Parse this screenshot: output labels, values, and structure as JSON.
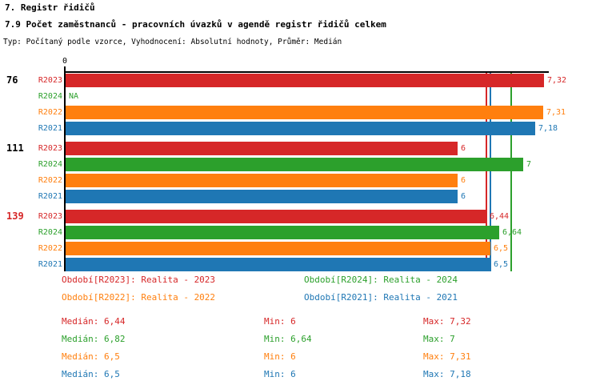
{
  "title1": "7. Registr řidičů",
  "title2": "7.9 Počet zaměstnanců - pracovních úvazků v agendě registr řidičů celkem",
  "subtitle": "Typ: Počítaný podle vzorce, Vyhodnocení: Absolutní hodnoty, Průměr: Medián",
  "colors": {
    "R2023": "#d62728",
    "R2024": "#2ca02c",
    "R2022": "#ff7f0e",
    "R2021": "#1f77b4",
    "axis": "#000000",
    "group_label_default": "#000000",
    "group_label_highlight": "#d62728"
  },
  "chart_data": {
    "type": "bar",
    "orientation": "horizontal",
    "title": "7.9 Počet zaměstnanců - pracovních úvazků v agendě registr řidičů celkem",
    "xlim": [
      0,
      7.4
    ],
    "grid": false,
    "legend_position": "bottom",
    "x_axis": {
      "origin_label": "0"
    },
    "series_order": [
      "R2023",
      "R2024",
      "R2022",
      "R2021"
    ],
    "groups": [
      {
        "label": "76",
        "label_color": "#000000",
        "bars": [
          {
            "series": "R2023",
            "value": 7.32,
            "value_label": "7,32"
          },
          {
            "series": "R2024",
            "value": null,
            "value_label": "NA"
          },
          {
            "series": "R2022",
            "value": 7.31,
            "value_label": "7,31"
          },
          {
            "series": "R2021",
            "value": 7.18,
            "value_label": "7,18"
          }
        ]
      },
      {
        "label": "111",
        "label_color": "#000000",
        "bars": [
          {
            "series": "R2023",
            "value": 6,
            "value_label": "6"
          },
          {
            "series": "R2024",
            "value": 7,
            "value_label": "7"
          },
          {
            "series": "R2022",
            "value": 6,
            "value_label": "6"
          },
          {
            "series": "R2021",
            "value": 6,
            "value_label": "6"
          }
        ]
      },
      {
        "label": "139",
        "label_color": "#d62728",
        "bars": [
          {
            "series": "R2023",
            "value": 6.44,
            "value_label": "6,44"
          },
          {
            "series": "R2024",
            "value": 6.64,
            "value_label": "6,64"
          },
          {
            "series": "R2022",
            "value": 6.5,
            "value_label": "6,5"
          },
          {
            "series": "R2021",
            "value": 6.5,
            "value_label": "6,5"
          }
        ]
      }
    ],
    "reference_lines": [
      {
        "series": "R2022",
        "value": 6.5
      },
      {
        "series": "R2021",
        "value": 6.5
      },
      {
        "series": "R2023",
        "value": 6.44
      },
      {
        "series": "R2024",
        "value": 6.82
      }
    ]
  },
  "legend": {
    "items": [
      {
        "series": "R2023",
        "label": "Období[R2023]: Realita - 2023"
      },
      {
        "series": "R2024",
        "label": "Období[R2024]: Realita - 2024"
      },
      {
        "series": "R2022",
        "label": "Období[R2022]: Realita - 2022"
      },
      {
        "series": "R2021",
        "label": "Období[R2021]: Realita - 2021"
      }
    ]
  },
  "stats": {
    "labels": {
      "median": "Medián",
      "min": "Min",
      "max": "Max"
    },
    "rows": [
      {
        "series": "R2023",
        "median": "6,44",
        "min": "6",
        "max": "7,32"
      },
      {
        "series": "R2024",
        "median": "6,82",
        "min": "6,64",
        "max": "7"
      },
      {
        "series": "R2022",
        "median": "6,5",
        "min": "6",
        "max": "7,31"
      },
      {
        "series": "R2021",
        "median": "6,5",
        "min": "6",
        "max": "7,18"
      }
    ]
  }
}
